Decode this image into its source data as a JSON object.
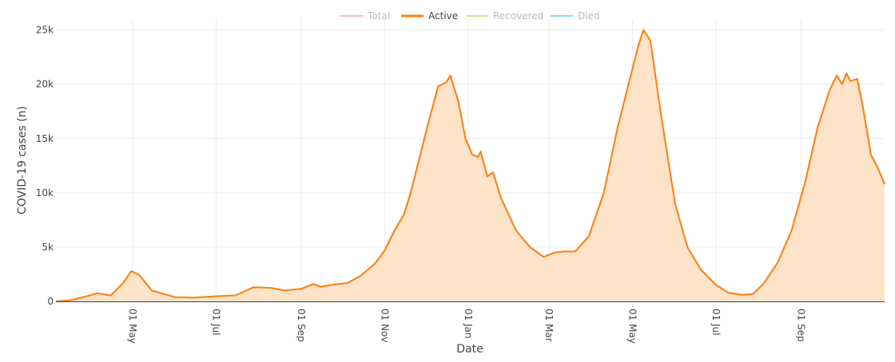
{
  "chart_data": {
    "type": "area",
    "xlabel": "Date",
    "ylabel": "COVID-19 cases (n)",
    "x_ticks": [
      "01 May",
      "01 Jul",
      "01 Sep",
      "01 Nov",
      "01 Jan",
      "01 Mar",
      "01 May",
      "01 Jul",
      "01 Sep"
    ],
    "y_ticks": [
      "0",
      "5k",
      "10k",
      "15k",
      "20k",
      "25k"
    ],
    "ylim": [
      0,
      26000
    ],
    "legend_position": "top-center",
    "legend": [
      {
        "name": "Total",
        "color": "#e377c2",
        "visible": false
      },
      {
        "name": "Active",
        "color": "#ff7f0e",
        "visible": true
      },
      {
        "name": "Recovered",
        "color": "#bcbd22",
        "visible": false
      },
      {
        "name": "Died",
        "color": "#17becf",
        "visible": false
      }
    ],
    "series": [
      {
        "name": "Active",
        "color": "#ff7f0e",
        "fill": "#fde3c8",
        "points": [
          [
            "2020-03-06",
            0
          ],
          [
            "2020-03-16",
            100
          ],
          [
            "2020-03-26",
            400
          ],
          [
            "2020-04-05",
            750
          ],
          [
            "2020-04-15",
            550
          ],
          [
            "2020-04-24",
            1700
          ],
          [
            "2020-04-30",
            2800
          ],
          [
            "2020-05-06",
            2400
          ],
          [
            "2020-05-15",
            1000
          ],
          [
            "2020-06-01",
            400
          ],
          [
            "2020-06-15",
            350
          ],
          [
            "2020-07-01",
            480
          ],
          [
            "2020-07-15",
            550
          ],
          [
            "2020-07-28",
            1300
          ],
          [
            "2020-08-10",
            1250
          ],
          [
            "2020-08-20",
            1000
          ],
          [
            "2020-09-01",
            1150
          ],
          [
            "2020-09-10",
            1600
          ],
          [
            "2020-09-15",
            1350
          ],
          [
            "2020-09-25",
            1550
          ],
          [
            "2020-10-05",
            1700
          ],
          [
            "2020-10-15",
            2400
          ],
          [
            "2020-10-25",
            3500
          ],
          [
            "2020-11-01",
            4700
          ],
          [
            "2020-11-08",
            6500
          ],
          [
            "2020-11-15",
            8000
          ],
          [
            "2020-11-20",
            10000
          ],
          [
            "2020-11-26",
            13000
          ],
          [
            "2020-12-03",
            16500
          ],
          [
            "2020-12-10",
            19800
          ],
          [
            "2020-12-16",
            20200
          ],
          [
            "2020-12-19",
            20800
          ],
          [
            "2020-12-25",
            18300
          ],
          [
            "2020-12-30",
            15000
          ],
          [
            "2021-01-04",
            13500
          ],
          [
            "2021-01-08",
            13300
          ],
          [
            "2021-01-10",
            13800
          ],
          [
            "2021-01-15",
            11500
          ],
          [
            "2021-01-19",
            11900
          ],
          [
            "2021-01-25",
            9500
          ],
          [
            "2021-02-05",
            6500
          ],
          [
            "2021-02-15",
            5000
          ],
          [
            "2021-02-25",
            4100
          ],
          [
            "2021-03-05",
            4500
          ],
          [
            "2021-03-12",
            4600
          ],
          [
            "2021-03-20",
            4600
          ],
          [
            "2021-03-30",
            6000
          ],
          [
            "2021-04-10",
            10000
          ],
          [
            "2021-04-20",
            16000
          ],
          [
            "2021-04-28",
            20000
          ],
          [
            "2021-05-05",
            23500
          ],
          [
            "2021-05-09",
            25000
          ],
          [
            "2021-05-14",
            24000
          ],
          [
            "2021-05-22",
            17000
          ],
          [
            "2021-06-01",
            9000
          ],
          [
            "2021-06-10",
            5000
          ],
          [
            "2021-06-20",
            2900
          ],
          [
            "2021-07-01",
            1500
          ],
          [
            "2021-07-10",
            800
          ],
          [
            "2021-07-20",
            600
          ],
          [
            "2021-07-28",
            700
          ],
          [
            "2021-08-05",
            1700
          ],
          [
            "2021-08-15",
            3600
          ],
          [
            "2021-08-25",
            6500
          ],
          [
            "2021-09-04",
            11000
          ],
          [
            "2021-09-13",
            16000
          ],
          [
            "2021-09-22",
            19500
          ],
          [
            "2021-09-27",
            20800
          ],
          [
            "2021-10-01",
            20000
          ],
          [
            "2021-10-04",
            21000
          ],
          [
            "2021-10-07",
            20300
          ],
          [
            "2021-10-12",
            20500
          ],
          [
            "2021-10-16",
            18000
          ],
          [
            "2021-10-22",
            13500
          ],
          [
            "2021-10-27",
            12300
          ],
          [
            "2021-11-01",
            10800
          ]
        ]
      }
    ]
  }
}
